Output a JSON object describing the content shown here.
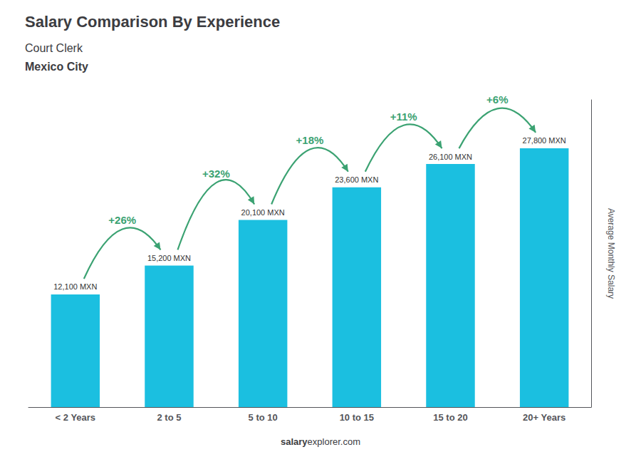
{
  "chart_data": {
    "type": "bar",
    "title": "Salary Comparison By Experience",
    "subtitles": [
      "Court Clerk",
      "Mexico City"
    ],
    "categories": [
      "< 2 Years",
      "2 to 5",
      "5 to 10",
      "10 to 15",
      "15 to 20",
      "20+ Years"
    ],
    "values": [
      12100,
      15200,
      20100,
      23600,
      26100,
      27800
    ],
    "value_labels": [
      "12,100 MXN",
      "15,200 MXN",
      "20,100 MXN",
      "23,600 MXN",
      "26,100 MXN",
      "27,800 MXN"
    ],
    "data_labels": true,
    "color": "#1BBFE0",
    "ylabel": "Average Monthly Salary",
    "ylim": [
      0,
      33000
    ],
    "annotations": [
      "+26%",
      "+32%",
      "+18%",
      "+11%",
      "+6%"
    ],
    "footer": [
      "salary",
      "explorer.com"
    ],
    "grid": false,
    "tick_labels": "x"
  }
}
